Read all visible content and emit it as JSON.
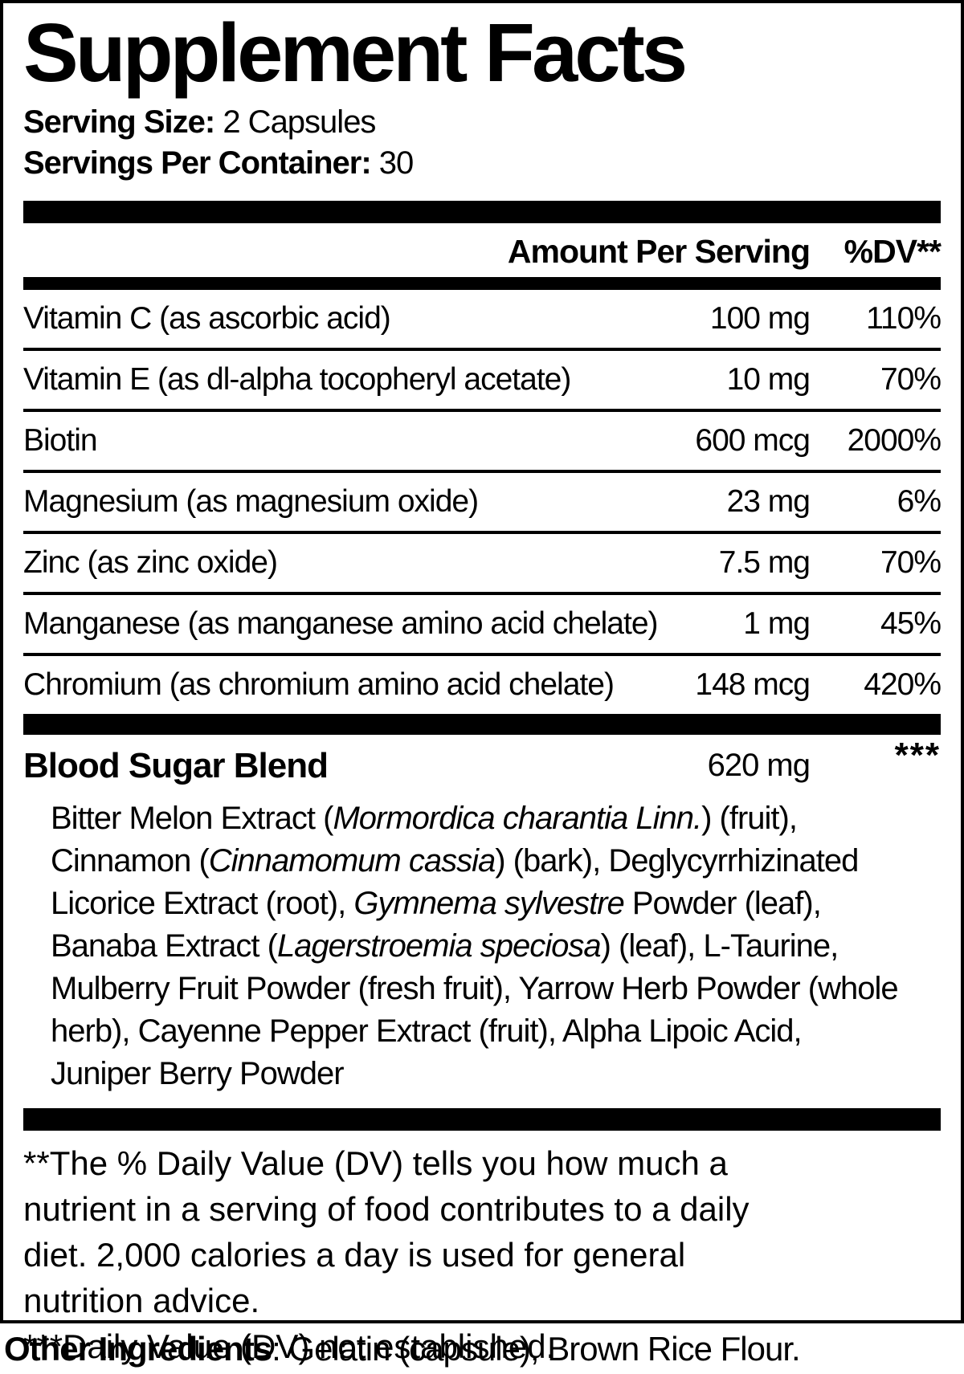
{
  "panel": {
    "title": "Supplement Facts",
    "serving_size_label": "Serving Size:",
    "serving_size_value": " 2 Capsules",
    "servings_per_container_label": "Servings Per Container:",
    "servings_per_container_value": " 30"
  },
  "table": {
    "amount_header": "Amount Per Serving",
    "dv_header": "%DV**",
    "rows": [
      {
        "name": "Vitamin C (as ascorbic acid)",
        "amount": "100 mg",
        "dv": "110%"
      },
      {
        "name": "Vitamin E (as dl-alpha tocopheryl acetate)",
        "amount": "10 mg",
        "dv": "70%"
      },
      {
        "name": "Biotin",
        "amount": "600 mcg",
        "dv": "2000%"
      },
      {
        "name": "Magnesium (as magnesium oxide)",
        "amount": "23 mg",
        "dv": "6%"
      },
      {
        "name": "Zinc (as zinc oxide)",
        "amount": "7.5 mg",
        "dv": "70%"
      },
      {
        "name": "Manganese (as manganese amino acid chelate)",
        "amount": "1 mg",
        "dv": "45%"
      },
      {
        "name": "Chromium (as chromium amino acid chelate)",
        "amount": "148 mcg",
        "dv": "420%"
      }
    ]
  },
  "blend": {
    "name": "Blood Sugar Blend",
    "amount": "620 mg",
    "dv": "***",
    "description_segments": [
      {
        "text": "Bitter Melon Extract (",
        "italic": false
      },
      {
        "text": "Mormordica charantia Linn.",
        "italic": true
      },
      {
        "text": ") (fruit), Cinnamon (",
        "italic": false
      },
      {
        "text": "Cinnamomum cassia",
        "italic": true
      },
      {
        "text": ") (bark), Deglycyrrhizinated Licorice Extract (root), ",
        "italic": false
      },
      {
        "text": "Gymnema sylvestre",
        "italic": true
      },
      {
        "text": " Powder (leaf), Banaba Extract (",
        "italic": false
      },
      {
        "text": "Lagerstroemia speciosa",
        "italic": true
      },
      {
        "text": ") (leaf), L-Taurine, Mulberry Fruit Powder (fresh fruit), Yarrow Herb Powder (whole herb), Cayenne Pepper Extract (fruit), Alpha Lipoic Acid, Juniper Berry Powder",
        "italic": false
      }
    ]
  },
  "footnotes": {
    "lines": [
      "**The % Daily Value (DV) tells you how much a",
      "nutrient in a serving of food contributes to a daily",
      "diet. 2,000 calories a day is used for general",
      "nutrition advice.",
      "***Daily Value (DV) not established."
    ]
  },
  "other_ingredients": {
    "label": "Other Ingredients",
    "text": ": Gelatin (capsule), Brown Rice Flour."
  },
  "colors": {
    "text": "#000000",
    "background": "#ffffff",
    "bars": "#000000"
  }
}
